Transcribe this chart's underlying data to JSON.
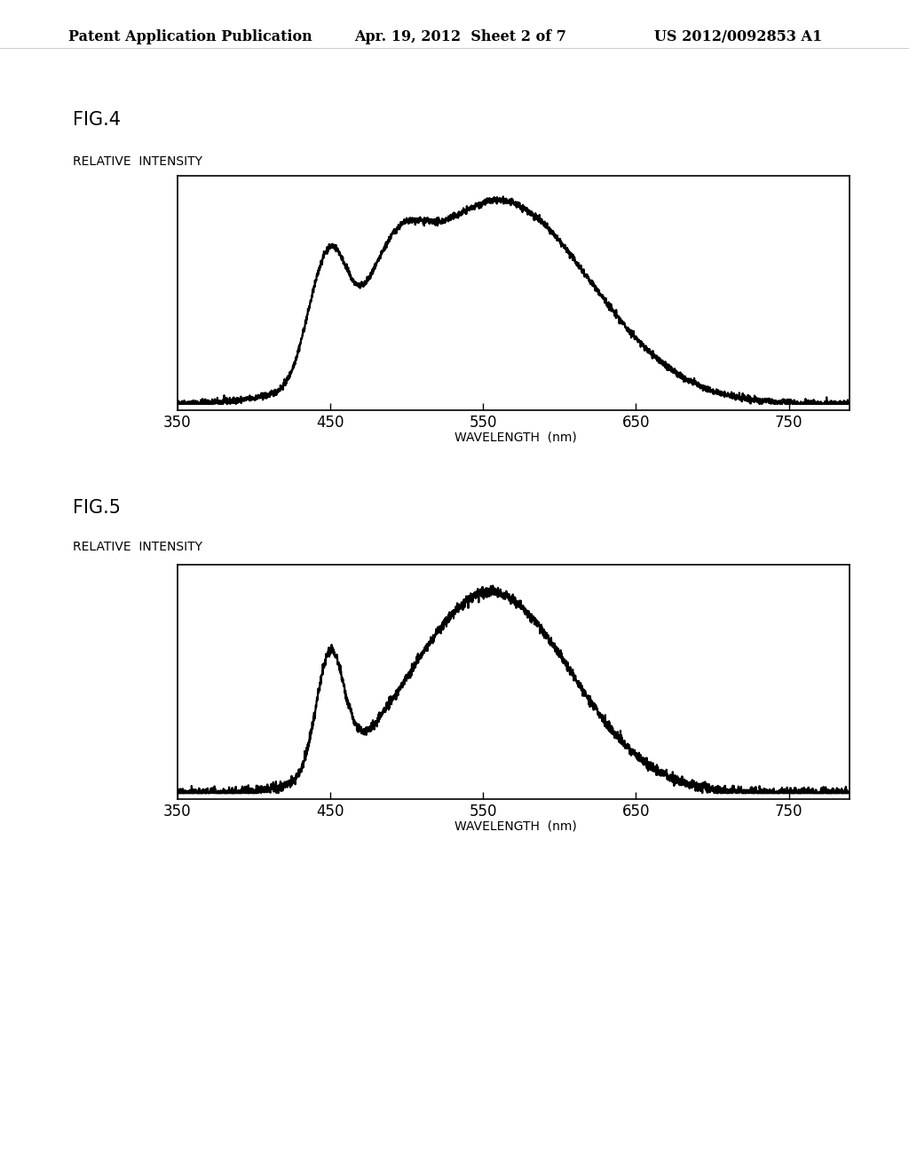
{
  "header_left": "Patent Application Publication",
  "header_center": "Apr. 19, 2012  Sheet 2 of 7",
  "header_right": "US 2012/0092853 A1",
  "fig4_label": "FIG.4",
  "fig5_label": "FIG.5",
  "ylabel": "RELATIVE  INTENSITY",
  "xlabel": "WAVELENGTH  (nm)",
  "xticks": [
    350,
    450,
    550,
    650,
    750
  ],
  "xlim": [
    350,
    790
  ],
  "background_color": "#ffffff",
  "line_color": "#000000",
  "header_fontsize": 11.5,
  "label_fontsize": 10,
  "tick_fontsize": 12,
  "fig_label_fontsize": 15,
  "ylabel_fontsize": 10
}
